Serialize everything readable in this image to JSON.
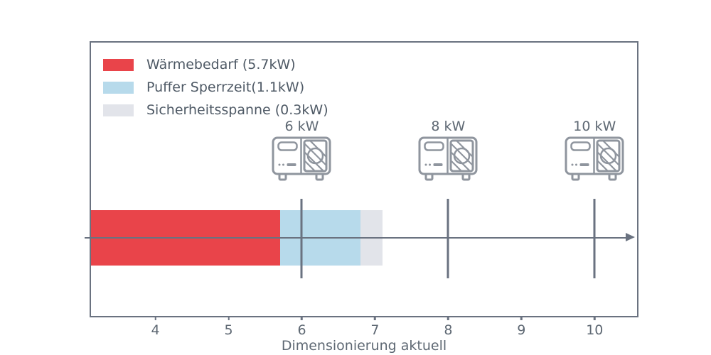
{
  "colors": {
    "axis_line": "#6a7280",
    "tick_text": "#5e6873",
    "legend_text": "#4e5965",
    "icon_stroke": "#8f959e",
    "background": "#ffffff"
  },
  "legend": {
    "items": [
      {
        "label": "Wärmebedarf (5.7kW)",
        "color": "#e9444a"
      },
      {
        "label": "Puffer Sperrzeit(1.1kW)",
        "color": "#b7daeb"
      },
      {
        "label": "Sicherheitsspanne (0.3kW)",
        "color": "#e2e4ea"
      }
    ]
  },
  "chart_data": {
    "type": "bar",
    "orientation": "horizontal",
    "title": "",
    "xlabel": "Dimensionierung aktuell",
    "ylabel": "",
    "xlim": [
      3.12,
      10.58
    ],
    "xticks": [
      4,
      5,
      6,
      7,
      8,
      9,
      10
    ],
    "grid": false,
    "legend_position": "upper-left",
    "segments": [
      {
        "name": "Wärmebedarf",
        "value_kw": 5.7,
        "start": 0.0,
        "end": 5.7,
        "color": "#e9444a"
      },
      {
        "name": "Puffer Sperrzeit",
        "value_kw": 1.1,
        "start": 5.7,
        "end": 6.8,
        "color": "#b7daeb"
      },
      {
        "name": "Sicherheitsspanne",
        "value_kw": 0.3,
        "start": 6.8,
        "end": 7.1,
        "color": "#e2e4ea"
      }
    ],
    "pump_markers": [
      {
        "label": "6 kW",
        "value": 6
      },
      {
        "label": "8 kW",
        "value": 8
      },
      {
        "label": "10 kW",
        "value": 10
      }
    ]
  }
}
